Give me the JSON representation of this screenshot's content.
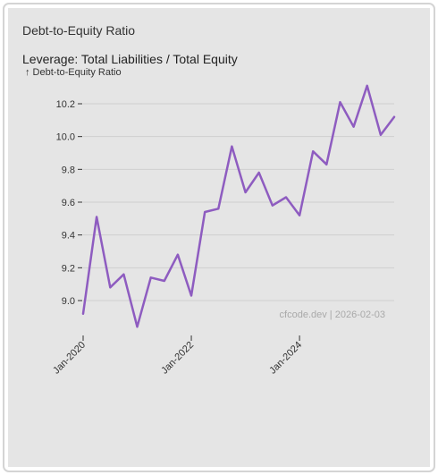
{
  "card": {
    "title": "Debt-to-Equity Ratio"
  },
  "chart_data": {
    "type": "line",
    "title": "Leverage: Total Liabilities / Total Equity",
    "ylabel": "↑ Debt-to-Equity Ratio",
    "xlabel": "",
    "x": [
      "2020-01",
      "2020-04",
      "2020-07",
      "2020-10",
      "2021-01",
      "2021-04",
      "2021-07",
      "2021-10",
      "2022-01",
      "2022-04",
      "2022-07",
      "2022-10",
      "2023-01",
      "2023-04",
      "2023-07",
      "2023-10",
      "2024-01",
      "2024-04",
      "2024-07",
      "2024-10",
      "2025-01",
      "2025-04",
      "2025-07",
      "2025-10"
    ],
    "series": [
      {
        "color": "#8e5cc0",
        "values": [
          8.92,
          9.51,
          9.08,
          9.16,
          8.84,
          9.14,
          9.12,
          9.28,
          9.03,
          9.54,
          9.56,
          9.94,
          9.66,
          9.78,
          9.58,
          9.63,
          9.52,
          9.91,
          9.83,
          10.21,
          10.06,
          10.31,
          10.01,
          10.12
        ]
      }
    ],
    "x_ticks": [
      {
        "label": "Jan-2020",
        "x": "2020-01"
      },
      {
        "label": "Jan-2022",
        "x": "2022-01"
      },
      {
        "label": "Jan-2024",
        "x": "2024-01"
      }
    ],
    "y_ticks": [
      "9.0",
      "9.2",
      "9.4",
      "9.6",
      "9.8",
      "10.0",
      "10.2"
    ],
    "ylim": [
      8.84,
      10.31
    ],
    "grid": true,
    "watermark": "cfcode.dev | 2026-02-03"
  }
}
